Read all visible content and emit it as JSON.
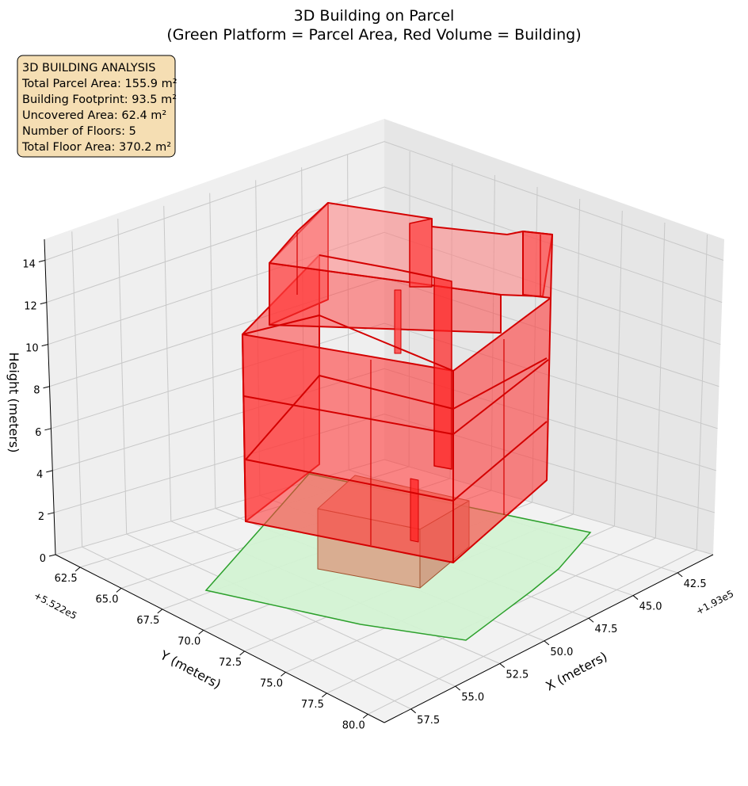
{
  "chart_data": {
    "type": "3d-polygons",
    "title": [
      "3D Building on Parcel",
      "(Green Platform = Parcel Area, Red Volume = Building)"
    ],
    "xlabel": "X (meters)",
    "ylabel": "Y (meters)",
    "zlabel": "Height (meters)",
    "x_offset_label": "+1.93e5",
    "y_offset_label": "+5.522e5",
    "x_ticks": [
      "42.5",
      "45.0",
      "47.5",
      "50.0",
      "52.5",
      "55.0",
      "57.5"
    ],
    "y_ticks": [
      "62.5",
      "65.0",
      "67.5",
      "70.0",
      "72.5",
      "75.0",
      "77.5",
      "80.0"
    ],
    "z_ticks": [
      "0",
      "2",
      "4",
      "6",
      "8",
      "10",
      "12",
      "14"
    ],
    "grid": true,
    "colors": {
      "parcel_fill": "#d3f2d3",
      "parcel_edge": "#2ca02c",
      "building_fill": "#ff3b3b",
      "building_edge": "#d40000",
      "basement_fill": "#d9a58a",
      "pane": "#f2f2f2",
      "info_box": "#f5deb3"
    },
    "series": [
      {
        "name": "Parcel Area",
        "shape": "platform"
      },
      {
        "name": "Building",
        "shape": "extruded volume"
      }
    ],
    "info_box": {
      "lines": [
        "3D BUILDING ANALYSIS",
        "Total Parcel Area: 155.9 m²",
        "Building Footprint: 93.5 m²",
        "Uncovered Area: 62.4 m²",
        "Number of Floors: 5",
        "Total Floor Area: 370.2 m²"
      ]
    }
  }
}
